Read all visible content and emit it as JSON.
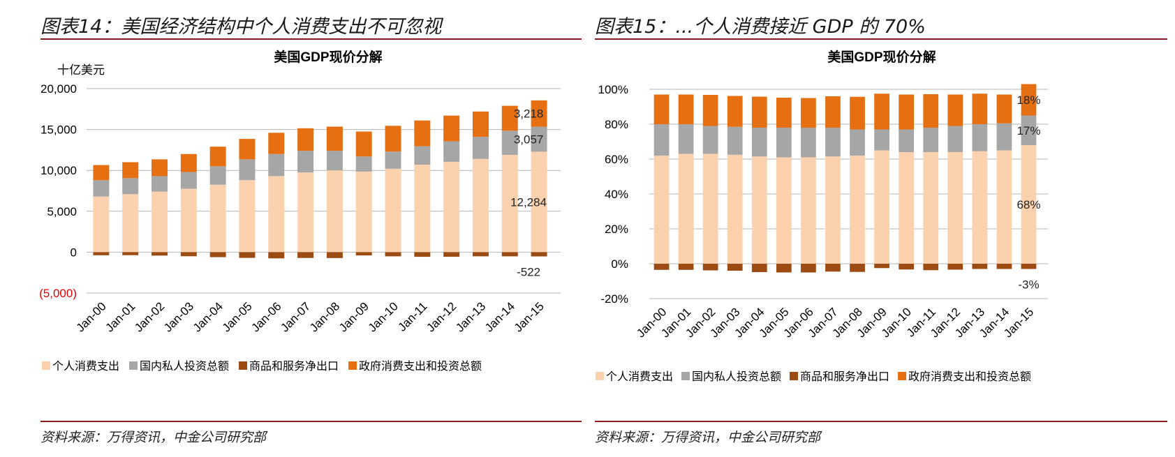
{
  "colors": {
    "consumption": "#fcd2ae",
    "investment": "#a6a6a6",
    "net_exports": "#9c4b12",
    "government": "#e66f12",
    "rule": "#8b1a1a",
    "grid": "#b3b3b3",
    "negative_label": "#e00000"
  },
  "left": {
    "figure_title": "图表14：美国经济结构中个人消费支出不可忽视",
    "source": "资料来源：万得资讯，中金公司研究部"
  },
  "right": {
    "figure_title": "图表15：...个人消费接近 GDP 的 70%",
    "source": "资料来源：万得资讯，中金公司研究部"
  },
  "chart_data": [
    {
      "type": "bar",
      "stacked": true,
      "title": "美国GDP现价分解",
      "unit_label": "十亿美元",
      "categories": [
        "Jan-00",
        "Jan-01",
        "Jan-02",
        "Jan-03",
        "Jan-04",
        "Jan-05",
        "Jan-06",
        "Jan-07",
        "Jan-08",
        "Jan-09",
        "Jan-10",
        "Jan-11",
        "Jan-12",
        "Jan-13",
        "Jan-14",
        "Jan-15"
      ],
      "ylim": [
        -5000,
        20000
      ],
      "yticks": [
        {
          "value": 20000,
          "label": "20,000"
        },
        {
          "value": 15000,
          "label": "15,000"
        },
        {
          "value": 10000,
          "label": "10,000"
        },
        {
          "value": 5000,
          "label": "5,000"
        },
        {
          "value": 0,
          "label": "0"
        },
        {
          "value": -5000,
          "label": "(5,000)",
          "negative": true
        }
      ],
      "series": [
        {
          "name": "个人消费支出",
          "key": "consumption",
          "values": [
            6800,
            7100,
            7400,
            7750,
            8250,
            8800,
            9300,
            9750,
            10000,
            9850,
            10200,
            10700,
            11050,
            11400,
            11900,
            12284
          ]
        },
        {
          "name": "国内私人投资总额",
          "key": "investment",
          "values": [
            2000,
            1950,
            1900,
            2050,
            2250,
            2550,
            2700,
            2650,
            2400,
            1850,
            2100,
            2250,
            2500,
            2700,
            2950,
            3057
          ]
        },
        {
          "name": "商品和服务净出口",
          "key": "net_exports",
          "values": [
            -380,
            -370,
            -420,
            -500,
            -610,
            -700,
            -760,
            -710,
            -720,
            -400,
            -510,
            -570,
            -560,
            -510,
            -510,
            -522
          ]
        },
        {
          "name": "政府消费支出和投资总额",
          "key": "government",
          "values": [
            1850,
            1950,
            2050,
            2200,
            2400,
            2500,
            2600,
            2750,
            2950,
            3050,
            3150,
            3150,
            3150,
            3100,
            3050,
            3218
          ]
        }
      ],
      "data_labels": [
        {
          "series": "government",
          "category": "Jan-15",
          "text": "3,218"
        },
        {
          "series": "investment",
          "category": "Jan-15",
          "text": "3,057"
        },
        {
          "series": "consumption",
          "category": "Jan-15",
          "text": "12,284"
        },
        {
          "series": "net_exports",
          "category": "Jan-15",
          "text": "-522"
        }
      ],
      "legend": "bottom",
      "grid": true
    },
    {
      "type": "bar",
      "stacked": true,
      "title": "美国GDP现价分解",
      "categories": [
        "Jan-00",
        "Jan-01",
        "Jan-02",
        "Jan-03",
        "Jan-04",
        "Jan-05",
        "Jan-06",
        "Jan-07",
        "Jan-08",
        "Jan-09",
        "Jan-10",
        "Jan-11",
        "Jan-12",
        "Jan-13",
        "Jan-14",
        "Jan-15"
      ],
      "ylim": [
        -20,
        100
      ],
      "yticks": [
        {
          "value": 100,
          "label": "100%"
        },
        {
          "value": 80,
          "label": "80%"
        },
        {
          "value": 60,
          "label": "60%"
        },
        {
          "value": 40,
          "label": "40%"
        },
        {
          "value": 20,
          "label": "20%"
        },
        {
          "value": 0,
          "label": "0%"
        },
        {
          "value": -20,
          "label": "-20%"
        }
      ],
      "series": [
        {
          "name": "个人消费支出",
          "key": "consumption",
          "values": [
            62,
            63,
            63,
            62.5,
            61.5,
            61,
            61,
            61.5,
            62,
            65,
            64,
            64,
            64,
            64.5,
            65,
            68
          ]
        },
        {
          "name": "国内私人投资总额",
          "key": "investment",
          "values": [
            18,
            17,
            16,
            16,
            16.5,
            17,
            17,
            16.5,
            15,
            12,
            13,
            14,
            15,
            15.5,
            15.5,
            17
          ]
        },
        {
          "name": "商品和服务净出口",
          "key": "net_exports",
          "values": [
            -3.5,
            -3.5,
            -3.8,
            -4,
            -4.8,
            -5,
            -5,
            -4.5,
            -4.7,
            -2.5,
            -3.3,
            -3.7,
            -3.4,
            -3,
            -3,
            -3
          ]
        },
        {
          "name": "政府消费支出和投资总额",
          "key": "government",
          "values": [
            17,
            17,
            17.8,
            17.7,
            17.8,
            17.2,
            17,
            18,
            18.7,
            20.5,
            20,
            19.2,
            18,
            17.5,
            16.5,
            18
          ]
        }
      ],
      "data_labels": [
        {
          "series": "government",
          "category": "Jan-15",
          "text": "18%"
        },
        {
          "series": "investment",
          "category": "Jan-15",
          "text": "17%"
        },
        {
          "series": "consumption",
          "category": "Jan-15",
          "text": "68%"
        },
        {
          "series": "net_exports",
          "category": "Jan-15",
          "text": "-3%"
        }
      ],
      "legend": "bottom",
      "grid": true
    }
  ]
}
